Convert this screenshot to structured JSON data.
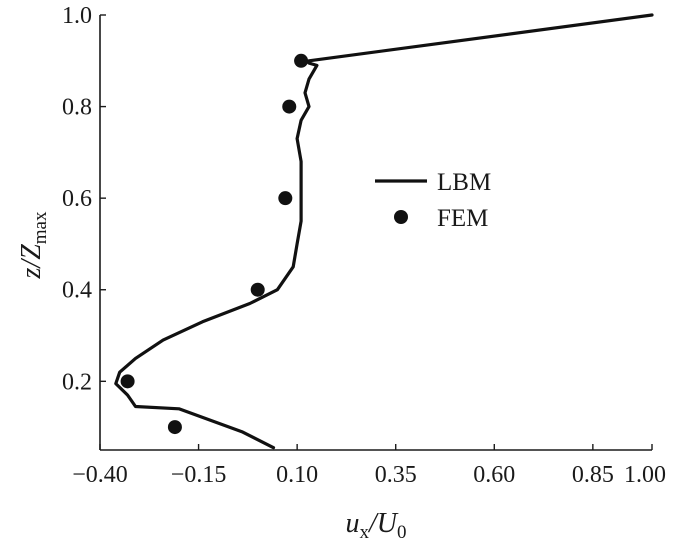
{
  "chart_data": {
    "type": "line",
    "xlabel": {
      "main": "u",
      "sub1": "x",
      "sep": "/U",
      "sub2": "0"
    },
    "ylabel": {
      "main": "z/Z",
      "sub": "max"
    },
    "xlim": [
      -0.4,
      1.0
    ],
    "ylim": [
      0.05,
      1.0
    ],
    "xticks": [
      "−0.40",
      "−0.15",
      "0.10",
      "0.35",
      "0.60",
      "0.85",
      "1.00"
    ],
    "xtick_values": [
      -0.4,
      -0.15,
      0.1,
      0.35,
      0.6,
      0.85,
      1.0
    ],
    "yticks": [
      "0.2",
      "0.4",
      "0.6",
      "0.8",
      "1.0"
    ],
    "ytick_values": [
      0.2,
      0.4,
      0.6,
      0.8,
      1.0
    ],
    "grid": false,
    "legend_position": "center-right",
    "series": [
      {
        "name": "LBM",
        "style": "line",
        "color": "#111111",
        "x": [
          0.04,
          -0.04,
          -0.2,
          -0.31,
          -0.33,
          -0.36,
          -0.35,
          -0.31,
          -0.24,
          -0.14,
          -0.02,
          0.05,
          0.09,
          0.1,
          0.11,
          0.11,
          0.11,
          0.11,
          0.1,
          0.11,
          0.13,
          0.12,
          0.13,
          0.15,
          0.13,
          0.13,
          1.0
        ],
        "y": [
          0.055,
          0.09,
          0.14,
          0.145,
          0.17,
          0.195,
          0.22,
          0.25,
          0.29,
          0.33,
          0.37,
          0.4,
          0.45,
          0.5,
          0.55,
          0.59,
          0.63,
          0.68,
          0.73,
          0.77,
          0.8,
          0.83,
          0.86,
          0.89,
          0.895,
          0.9,
          1.0
        ]
      },
      {
        "name": "FEM",
        "style": "markers",
        "color": "#111111",
        "x": [
          -0.21,
          -0.33,
          0.0,
          0.07,
          0.08,
          0.11
        ],
        "y": [
          0.1,
          0.2,
          0.4,
          0.6,
          0.8,
          0.9
        ]
      }
    ]
  }
}
